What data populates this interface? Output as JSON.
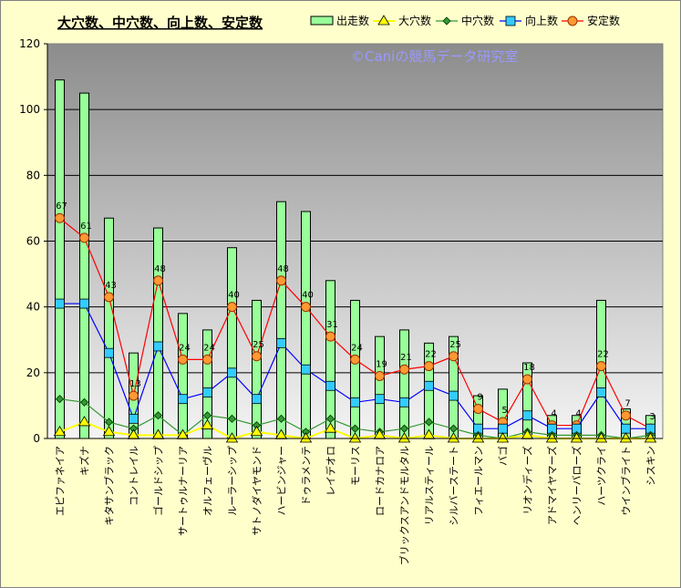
{
  "chart_data": {
    "type": "bar",
    "title": "大穴数、中穴数、向上数、安定数",
    "watermark": "©Caniの競馬データ研究室",
    "ylim": [
      0,
      120
    ],
    "yticks": [
      0,
      20,
      40,
      60,
      80,
      100,
      120
    ],
    "grid": true,
    "legend_position": "top-right",
    "categories": [
      "エピファネイア",
      "キズナ",
      "キタサンブラック",
      "コントレイル",
      "ゴールドシップ",
      "サートゥルナーリア",
      "オルフェーヴル",
      "ルーラーシップ",
      "サトノダイヤモンド",
      "ハービンジャー",
      "ドゥラメンテ",
      "レイデオロ",
      "モーリス",
      "ロードカナロア",
      "ブリックスアンドモルタル",
      "リアルスティール",
      "シルバーステート",
      "フィエールマン",
      "バゴ",
      "リオンディーズ",
      "アドマイヤマーズ",
      "ヘンリーバローズ",
      "ハーツクライ",
      "ウインブライト",
      "シスキン"
    ],
    "series": [
      {
        "name": "出走数",
        "kind": "bar",
        "color": "#99FF99",
        "values": [
          109,
          105,
          67,
          26,
          64,
          38,
          33,
          58,
          42,
          72,
          69,
          48,
          42,
          31,
          33,
          29,
          31,
          13,
          15,
          23,
          7,
          7,
          42,
          9,
          7
        ]
      },
      {
        "name": "大穴数",
        "kind": "line",
        "marker": "triangle",
        "color": "#FFFF00",
        "values": [
          2,
          5,
          2,
          1,
          1,
          1,
          4,
          0,
          2,
          1,
          0,
          3,
          0,
          1,
          0,
          1,
          0,
          0,
          0,
          1,
          0,
          0,
          0,
          0,
          0
        ]
      },
      {
        "name": "中穴数",
        "kind": "line",
        "marker": "diamond",
        "color": "#339933",
        "values": [
          12,
          11,
          5,
          3,
          7,
          1,
          7,
          6,
          4,
          6,
          2,
          6,
          3,
          2,
          3,
          5,
          3,
          1,
          0,
          2,
          1,
          1,
          1,
          0,
          1
        ]
      },
      {
        "name": "向上数",
        "kind": "line",
        "marker": "square",
        "color": "#0000FF",
        "values": [
          41,
          41,
          26,
          6,
          28,
          12,
          14,
          20,
          12,
          29,
          21,
          16,
          11,
          12,
          11,
          16,
          13,
          3,
          3,
          7,
          3,
          3,
          14,
          3,
          3
        ]
      },
      {
        "name": "安定数",
        "kind": "line",
        "marker": "circle",
        "color": "#FF0000",
        "values": [
          67,
          61,
          43,
          13,
          48,
          24,
          24,
          40,
          25,
          48,
          40,
          31,
          24,
          19,
          21,
          22,
          25,
          9,
          5,
          18,
          4,
          4,
          22,
          7,
          3
        ]
      }
    ],
    "data_labels": [
      67,
      61,
      43,
      13,
      48,
      24,
      24,
      40,
      25,
      48,
      40,
      31,
      24,
      19,
      21,
      22,
      25,
      9,
      5,
      18,
      4,
      4,
      22,
      7,
      3
    ]
  }
}
